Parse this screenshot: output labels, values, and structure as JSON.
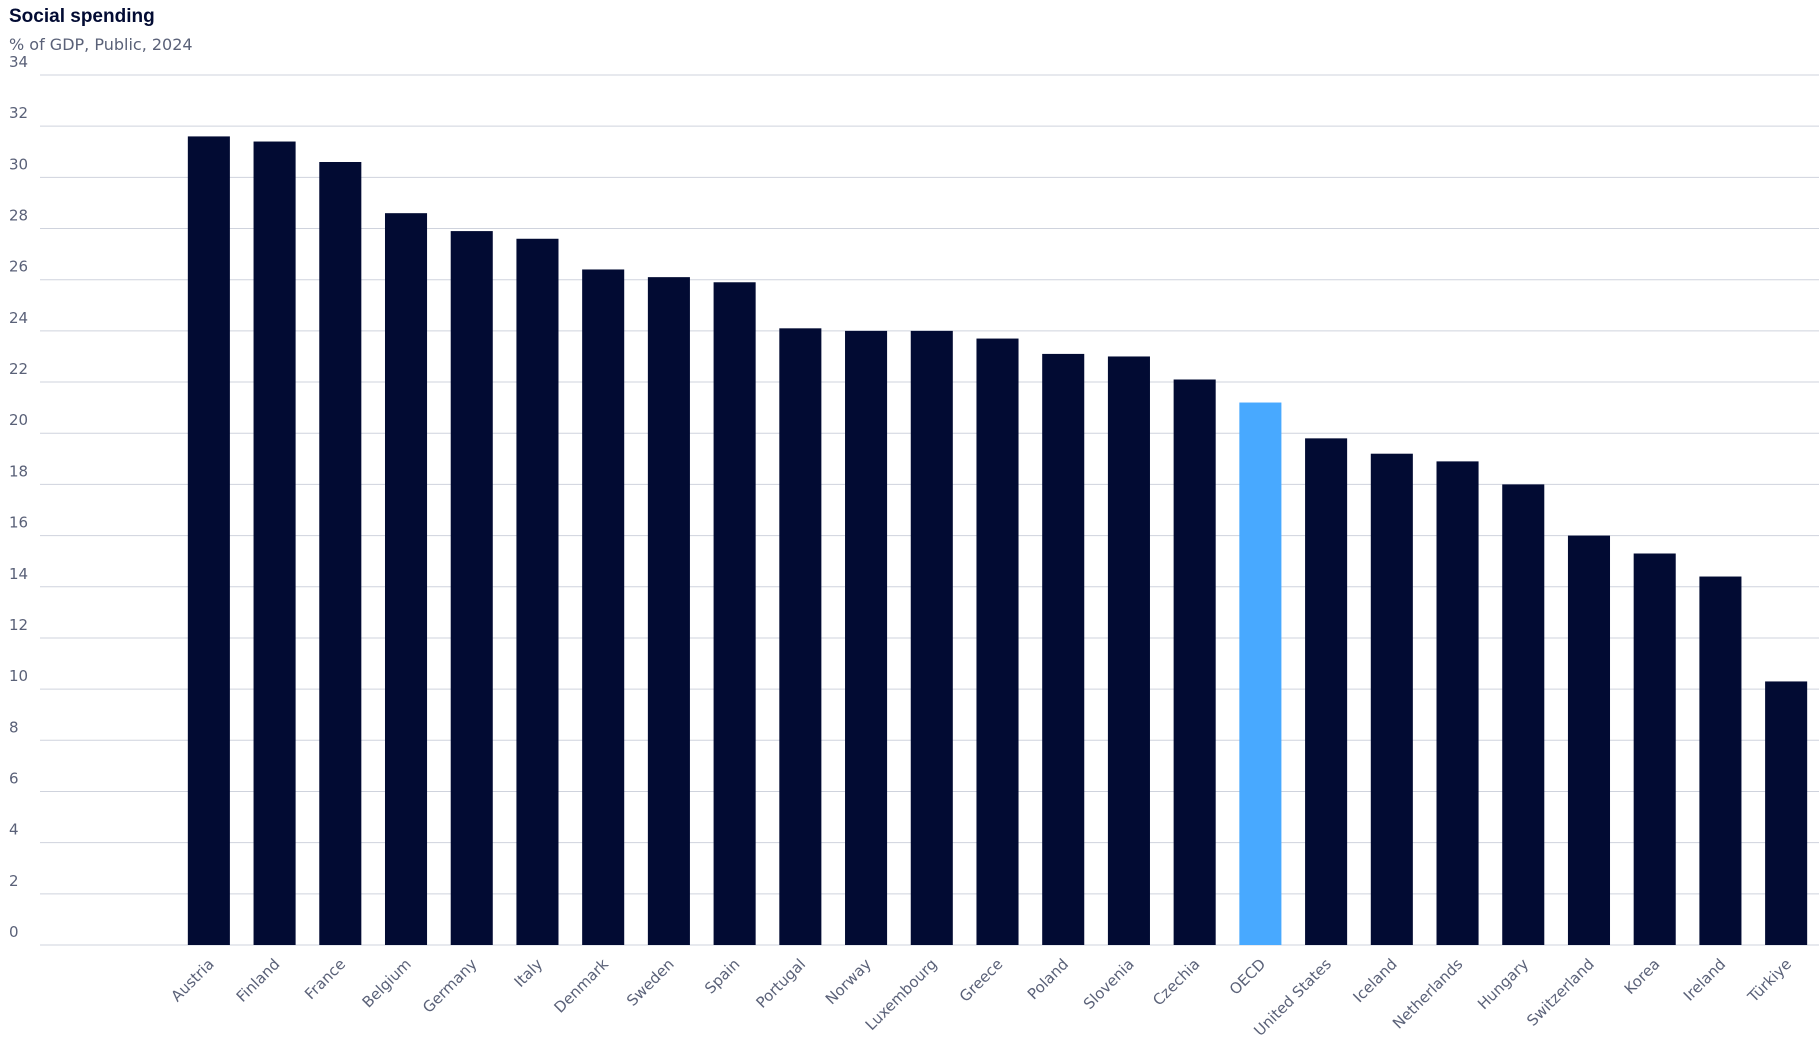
{
  "chart_data": {
    "type": "bar",
    "title": "Social spending",
    "subtitle": "% of GDP, Public, 2024",
    "categories": [
      "Austria",
      "Finland",
      "France",
      "Belgium",
      "Germany",
      "Italy",
      "Denmark",
      "Sweden",
      "Spain",
      "Portugal",
      "Norway",
      "Luxembourg",
      "Greece",
      "Poland",
      "Slovenia",
      "Czechia",
      "OECD",
      "United States",
      "Iceland",
      "Netherlands",
      "Hungary",
      "Switzerland",
      "Korea",
      "Ireland",
      "Türkiye"
    ],
    "values": [
      31.6,
      31.4,
      30.6,
      28.6,
      27.9,
      27.6,
      26.4,
      26.1,
      25.9,
      24.1,
      24.0,
      24.0,
      23.7,
      23.1,
      23.0,
      22.1,
      21.2,
      19.8,
      19.2,
      18.9,
      18.0,
      16.0,
      15.3,
      14.4,
      10.3
    ],
    "colors": [
      "#020b33",
      "#020b33",
      "#020b33",
      "#020b33",
      "#020b33",
      "#020b33",
      "#020b33",
      "#020b33",
      "#020b33",
      "#020b33",
      "#020b33",
      "#020b33",
      "#020b33",
      "#020b33",
      "#020b33",
      "#020b33",
      "#48a9ff",
      "#020b33",
      "#020b33",
      "#020b33",
      "#020b33",
      "#020b33",
      "#020b33",
      "#020b33",
      "#020b33"
    ],
    "ylim": [
      0,
      34
    ],
    "yticks": [
      0,
      2,
      4,
      6,
      8,
      10,
      12,
      14,
      16,
      18,
      20,
      22,
      24,
      26,
      28,
      30,
      32,
      34
    ],
    "grid": true
  }
}
